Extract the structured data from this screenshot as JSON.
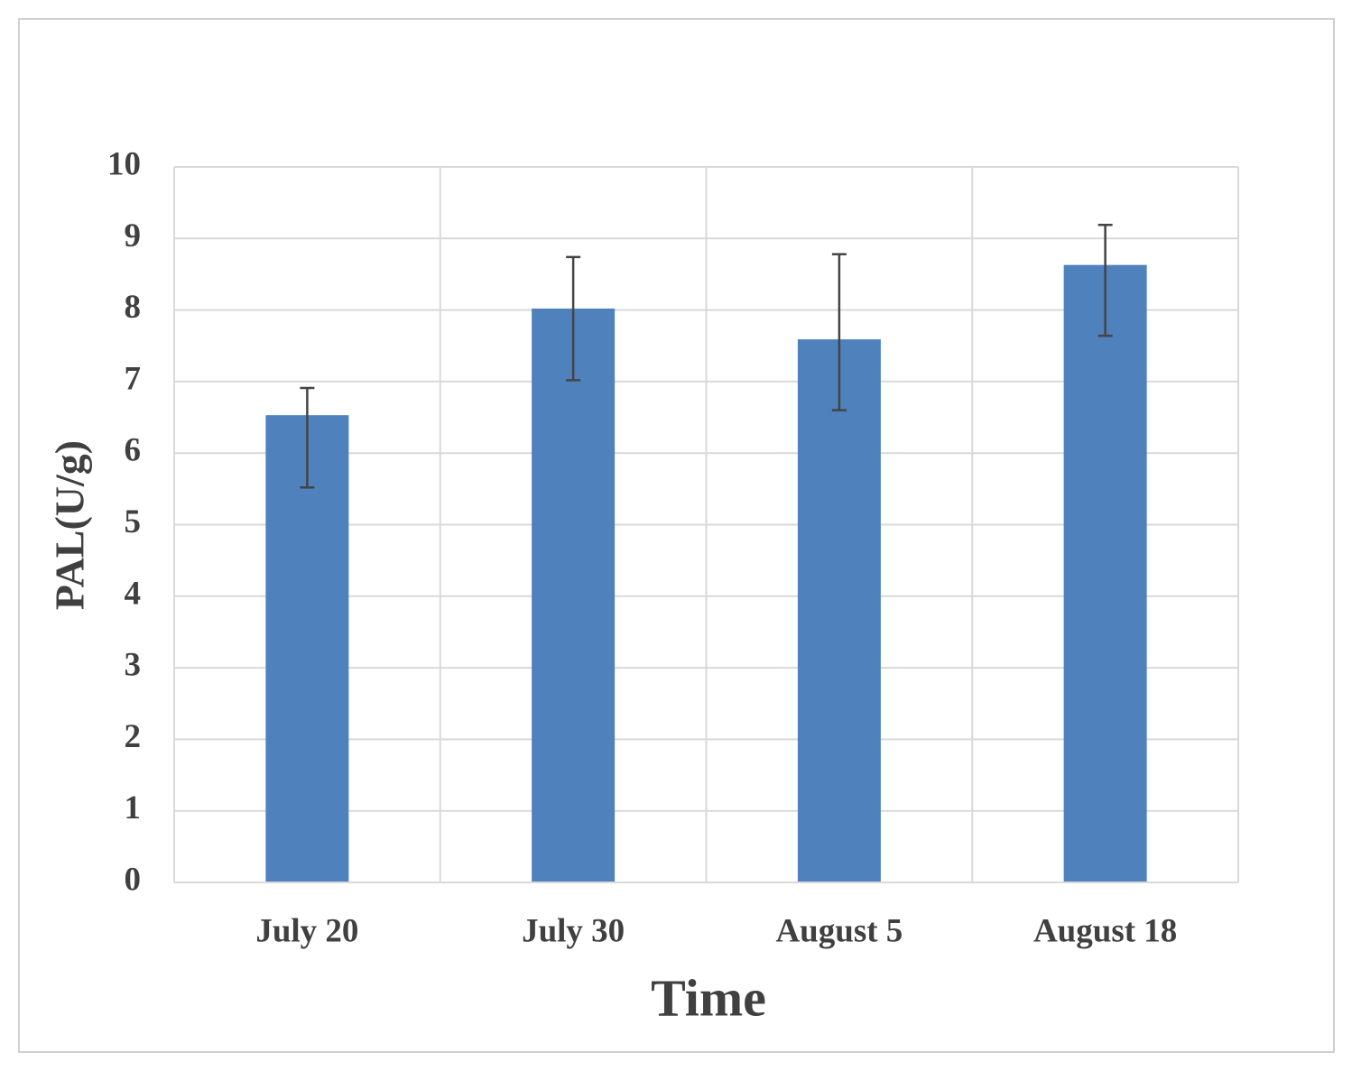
{
  "chart_data": {
    "type": "bar",
    "x_label": "Time",
    "y_label": "PAL(U/g)",
    "categories": [
      "July 20",
      "July 30",
      "August 5",
      "August 18"
    ],
    "values": [
      6.53,
      8.02,
      7.59,
      8.63
    ],
    "errors_minus": [
      1.01,
      1.0,
      0.99,
      0.99
    ],
    "errors_plus": [
      0.38,
      0.72,
      1.19,
      0.56
    ],
    "color": "#4f81bd",
    "error_color": "#444444",
    "ylim": [
      0,
      10
    ],
    "yticks": [
      0,
      1,
      2,
      3,
      4,
      5,
      6,
      7,
      8,
      9,
      10
    ],
    "grid": true
  }
}
